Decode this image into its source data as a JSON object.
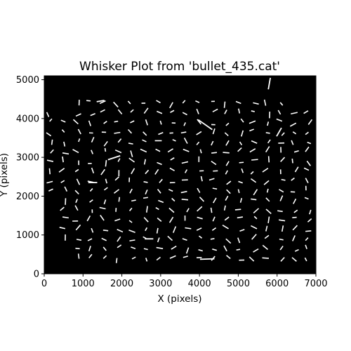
{
  "chart_data": {
    "type": "whisker",
    "title": "Whisker Plot from 'bullet_435.cat'",
    "xlabel": "X (pixels)",
    "ylabel": "Y (pixels)",
    "xlim": [
      0,
      7000
    ],
    "ylim": [
      0,
      5100
    ],
    "xticks": [
      0,
      1000,
      2000,
      3000,
      4000,
      5000,
      6000,
      7000
    ],
    "yticks": [
      0,
      1000,
      2000,
      3000,
      4000,
      5000
    ],
    "background_color": "#000000",
    "whisker_color": "#ffffff",
    "grid_x": [
      150,
      500,
      850,
      1200,
      1550,
      1900,
      2250,
      2600,
      2950,
      3300,
      3650,
      4000,
      4350,
      4700,
      5050,
      5400,
      5750,
      6100,
      6450,
      6800
    ],
    "grid_y": [
      400,
      650,
      900,
      1150,
      1400,
      1650,
      1900,
      2150,
      2400,
      2650,
      2900,
      3150,
      3400,
      3650,
      3900,
      4150,
      4400
    ],
    "whisker_length_scale_px_per_unit": 1,
    "whiskers": [
      {
        "x": 4150,
        "y": 3840,
        "length": 440,
        "angle_deg": -35
      },
      {
        "x": 1800,
        "y": 2990,
        "length": 330,
        "angle_deg": 18
      },
      {
        "x": 4200,
        "y": 380,
        "length": 370,
        "angle_deg": 2
      },
      {
        "x": 5800,
        "y": 4900,
        "length": 300,
        "angle_deg": 80
      },
      {
        "x": 6050,
        "y": 3650,
        "length": 250,
        "angle_deg": 60
      },
      {
        "x": 1250,
        "y": 2350,
        "length": 230,
        "angle_deg": 0
      },
      {
        "x": 2700,
        "y": 900,
        "length": 220,
        "angle_deg": 0
      },
      {
        "x": 1450,
        "y": 4450,
        "length": 200,
        "angle_deg": 10
      }
    ],
    "missing_cells": [
      [
        0,
        0
      ],
      [
        0,
        1
      ],
      [
        0,
        2
      ],
      [
        0,
        3
      ],
      [
        0,
        4
      ],
      [
        0,
        5
      ],
      [
        0,
        6
      ],
      [
        1,
        0
      ],
      [
        1,
        1
      ],
      [
        0,
        16
      ],
      [
        1,
        15
      ],
      [
        1,
        16
      ],
      [
        18,
        16
      ],
      [
        19,
        16
      ]
    ]
  }
}
